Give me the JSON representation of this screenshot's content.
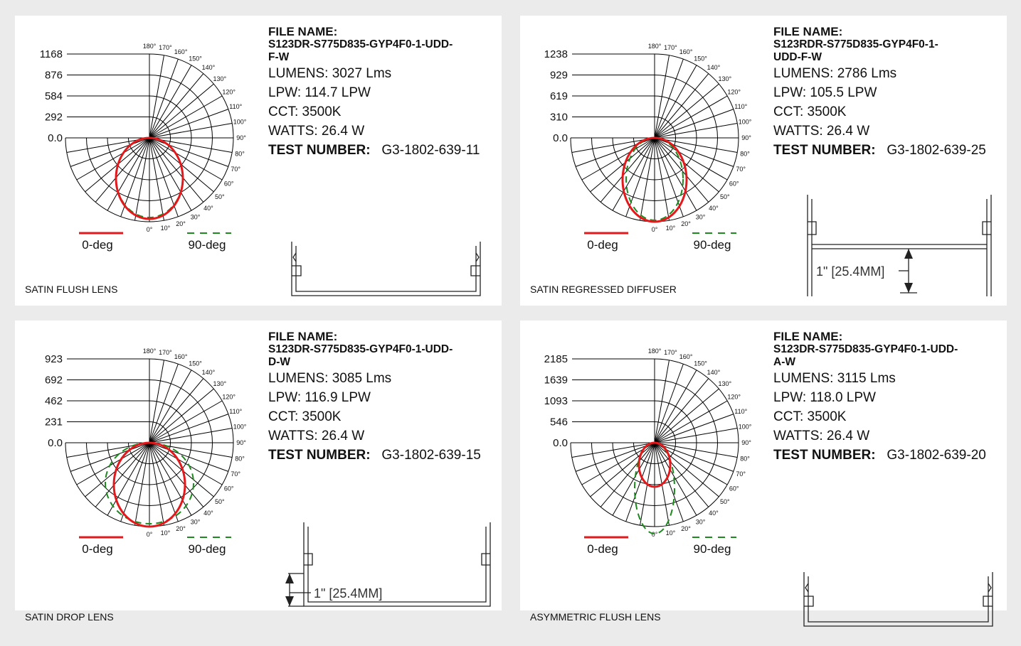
{
  "panels": [
    {
      "caption": "SATIN FLUSH LENS",
      "file_name_label": "FILE NAME:",
      "file_name": "S123DR-S775D835-GYP4F0-1-UDD-\nF-W",
      "lumens": "LUMENS: 3027 Lms",
      "lpw": "LPW: 114.7 LPW",
      "cct": "CCT: 3500K",
      "watts": "WATTS: 26.4 W",
      "test_label": "TEST NUMBER:",
      "test_number": "G3-1802-639-11",
      "radial_labels": [
        "1168",
        "876",
        "584",
        "292",
        "0.0"
      ],
      "profile": "flush"
    },
    {
      "caption": "SATIN REGRESSED DIFFUSER",
      "file_name_label": "FILE NAME:",
      "file_name": "S123RDR-S775D835-GYP4F0-1-\nUDD-F-W",
      "lumens": "LUMENS: 2786 Lms",
      "lpw": "LPW: 105.5 LPW",
      "cct": "CCT: 3500K",
      "watts": "WATTS: 26.4 W",
      "test_label": "TEST NUMBER:",
      "test_number": "G3-1802-639-25",
      "radial_labels": [
        "1238",
        "929",
        "619",
        "310",
        "0.0"
      ],
      "profile": "regressed",
      "dimension": "1\" [25.4MM]"
    },
    {
      "caption": "SATIN DROP LENS",
      "file_name_label": "FILE NAME:",
      "file_name": "S123DR-S775D835-GYP4F0-1-UDD-\nD-W",
      "lumens": "LUMENS: 3085 Lms",
      "lpw": "LPW: 116.9 LPW",
      "cct": "CCT: 3500K",
      "watts": "WATTS: 26.4 W",
      "test_label": "TEST NUMBER:",
      "test_number": "G3-1802-639-15",
      "radial_labels": [
        "923",
        "692",
        "462",
        "231",
        "0.0"
      ],
      "profile": "drop",
      "dimension": "1\" [25.4MM]"
    },
    {
      "caption": "ASYMMETRIC FLUSH LENS",
      "file_name_label": "FILE NAME:",
      "file_name": "S123DR-S775D835-GYP4F0-1-UDD-\nA-W",
      "lumens": "LUMENS: 3115 Lms",
      "lpw": "LPW: 118.0 LPW",
      "cct": "CCT: 3500K",
      "watts": "WATTS: 26.4 W",
      "test_label": "TEST NUMBER:",
      "test_number": "G3-1802-639-20",
      "radial_labels": [
        "2185",
        "1639",
        "1093",
        "546",
        "0.0"
      ],
      "profile": "flush"
    }
  ],
  "angle_labels": [
    "180°",
    "170°",
    "160°",
    "150°",
    "140°",
    "130°",
    "120°",
    "110°",
    "100°",
    "90°",
    "80°",
    "70°",
    "60°",
    "50°",
    "40°",
    "30°",
    "20°",
    "10°",
    "0°"
  ],
  "legend": {
    "red_label": "0-deg",
    "green_label": "90-deg"
  },
  "colors": {
    "curve_0deg": "#e3191c",
    "curve_90deg": "#1c8a1c",
    "grid": "#000000"
  }
}
